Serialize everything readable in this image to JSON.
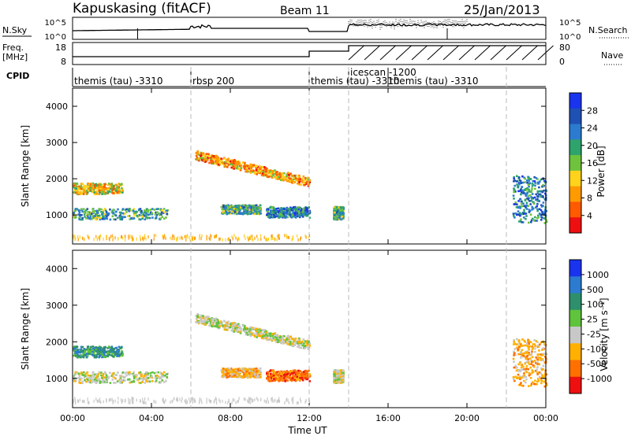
{
  "header": {
    "title": "Kapuskasing (fitACF)",
    "beam": "Beam 11",
    "date": "25/Jan/2013"
  },
  "xaxis": {
    "label": "Time UT",
    "ticks": [
      "00:00",
      "04:00",
      "08:00",
      "12:00",
      "16:00",
      "20:00",
      "00:00"
    ],
    "range_hours": [
      0,
      24
    ]
  },
  "top_panels": {
    "nsky_label": "N.Sky",
    "nsky_ticks": [
      "10^5",
      "10^0"
    ],
    "nsearch_label": "N.Search",
    "nsearch_ticks": [
      "10^5",
      "10^0"
    ],
    "freq_label_1": "Freq.",
    "freq_label_2": "[MHz]",
    "freq_ticks": [
      "18",
      "8"
    ],
    "nave_label": "Nave",
    "nave_ticks": [
      "80",
      "0"
    ],
    "cpid_label": "CPID"
  },
  "cpid_segments": [
    {
      "label": "themis (tau) -3310",
      "start": 0,
      "end": 6
    },
    {
      "label": "rbsp 200",
      "start": 6,
      "end": 12
    },
    {
      "label": "themis (tau) -3310",
      "start": 12,
      "end": 14
    },
    {
      "label": "icescan -1200",
      "start": 14,
      "end": 16
    },
    {
      "label": "themis (tau) -3310",
      "start": 16,
      "end": 22
    }
  ],
  "power_panel": {
    "ylabel": "Slant Range [km]",
    "yticks": [
      "4000",
      "3000",
      "2000",
      "1000"
    ],
    "colorbar_label": "Power [dB]",
    "colorbar_ticks": [
      "28",
      "24",
      "20",
      "16",
      "12",
      "8",
      "4"
    ],
    "colors": [
      "#1a33ee",
      "#1f50b3",
      "#2b7bd0",
      "#2ea36c",
      "#6fc33c",
      "#ffd21c",
      "#ff9a00",
      "#ff5a00",
      "#ee1010"
    ]
  },
  "velocity_panel": {
    "ylabel": "Slant Range [km]",
    "yticks": [
      "4000",
      "3000",
      "2000",
      "1000"
    ],
    "colorbar_label": "Velocity [m s⁻¹]",
    "colorbar_ticks": [
      "1000",
      "500",
      "100",
      "25",
      "-25",
      "-100",
      "-500",
      "-1000"
    ],
    "colors": [
      "#1a33ee",
      "#2b7bd0",
      "#2e8f6c",
      "#5fc33c",
      "#c8c8c8",
      "#ffb000",
      "#ff7000",
      "#ee1010"
    ]
  },
  "chart_data": {
    "type": "heatmap",
    "x_range": [
      0,
      24
    ],
    "y_range": [
      200,
      4500
    ],
    "panels": [
      "Power [dB]",
      "Velocity [m s⁻¹]"
    ],
    "echo_regions": [
      {
        "name": "band1",
        "t_start": 0,
        "t_end": 4.8,
        "range_start": 900,
        "range_end": 1200,
        "power": 18,
        "velocity": -25
      },
      {
        "name": "band2",
        "t_start": 0,
        "t_end": 2.5,
        "range_start": 1600,
        "range_end": 1900,
        "power": 12,
        "velocity": 100
      },
      {
        "name": "slant",
        "t_start": 6.2,
        "t_end": 12,
        "range_start": 1700,
        "range_end": 2700,
        "power": 8,
        "velocity": -25
      },
      {
        "name": "low1",
        "t_start": 7.5,
        "t_end": 9.5,
        "range_start": 1050,
        "range_end": 1300,
        "power": 16,
        "velocity": -100
      },
      {
        "name": "low2",
        "t_start": 9.8,
        "t_end": 12,
        "range_start": 950,
        "range_end": 1250,
        "power": 20,
        "velocity": -500
      },
      {
        "name": "spot",
        "t_start": 13.2,
        "t_end": 13.7,
        "range_start": 900,
        "range_end": 1250,
        "power": 16,
        "velocity": -25
      },
      {
        "name": "end",
        "t_start": 22.3,
        "t_end": 24,
        "range_start": 800,
        "range_end": 2100,
        "power": 20,
        "velocity": -100
      }
    ]
  }
}
